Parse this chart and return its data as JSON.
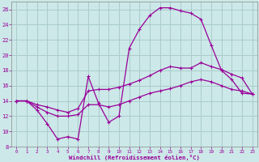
{
  "xlabel": "Windchill (Refroidissement éolien,°C)",
  "bg_color": "#cce8e8",
  "grid_color": "#aacccc",
  "line_color": "#990099",
  "xlim": [
    -0.5,
    23.5
  ],
  "ylim": [
    8,
    27
  ],
  "yticks": [
    8,
    10,
    12,
    14,
    16,
    18,
    20,
    22,
    24,
    26
  ],
  "xticks": [
    0,
    1,
    2,
    3,
    4,
    5,
    6,
    7,
    8,
    9,
    10,
    11,
    12,
    13,
    14,
    15,
    16,
    17,
    18,
    19,
    20,
    21,
    22,
    23
  ],
  "curve1_x": [
    0,
    1,
    2,
    3,
    4,
    5,
    6,
    7,
    8,
    9,
    10,
    11,
    12,
    13,
    14,
    15,
    16,
    17,
    18,
    19,
    20,
    21,
    22,
    23
  ],
  "curve1_y": [
    14.0,
    14.0,
    12.8,
    11.0,
    9.0,
    9.3,
    9.0,
    17.2,
    13.7,
    11.2,
    12.0,
    20.9,
    23.4,
    25.2,
    26.2,
    26.2,
    25.8,
    25.5,
    24.7,
    21.3,
    18.0,
    16.8,
    15.0,
    14.9
  ],
  "curve2_x": [
    0,
    1,
    2,
    3,
    4,
    5,
    6,
    7,
    8,
    9,
    10,
    11,
    12,
    13,
    14,
    15,
    16,
    17,
    18,
    19,
    20,
    21,
    22,
    23
  ],
  "curve2_y": [
    14.0,
    14.0,
    13.5,
    13.2,
    12.8,
    12.5,
    13.0,
    15.3,
    15.5,
    15.5,
    15.8,
    16.2,
    16.7,
    17.3,
    18.0,
    18.5,
    18.3,
    18.3,
    19.0,
    18.5,
    18.1,
    17.5,
    17.0,
    14.9
  ],
  "curve3_x": [
    0,
    1,
    2,
    3,
    4,
    5,
    6,
    7,
    8,
    9,
    10,
    11,
    12,
    13,
    14,
    15,
    16,
    17,
    18,
    19,
    20,
    21,
    22,
    23
  ],
  "curve3_y": [
    14.0,
    14.0,
    13.2,
    12.5,
    12.0,
    12.0,
    12.2,
    13.5,
    13.5,
    13.2,
    13.5,
    14.0,
    14.5,
    15.0,
    15.3,
    15.6,
    16.0,
    16.5,
    16.8,
    16.5,
    16.0,
    15.5,
    15.3,
    14.9
  ]
}
